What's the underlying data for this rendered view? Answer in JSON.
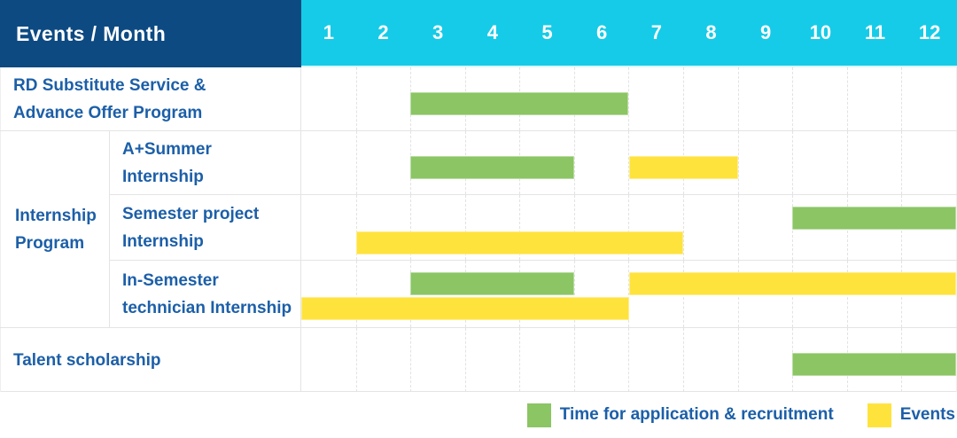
{
  "header": {
    "title": "Events / Month",
    "months": [
      "1",
      "2",
      "3",
      "4",
      "5",
      "6",
      "7",
      "8",
      "9",
      "10",
      "11",
      "12"
    ]
  },
  "colors": {
    "navy": "#0d4a82",
    "cyan": "#16cbe7",
    "green": "#8bc564",
    "yellow": "#ffe33d",
    "label_blue": "#1c5fa8"
  },
  "table": {
    "group_label": "Internship Program",
    "group_label_display": "Internship\nProgram"
  },
  "chart_data": {
    "type": "bar",
    "subtype": "gantt-timeline",
    "unit": "month",
    "x_range": [
      1,
      12
    ],
    "x_ticks": [
      "1",
      "2",
      "3",
      "4",
      "5",
      "6",
      "7",
      "8",
      "9",
      "10",
      "11",
      "12"
    ],
    "corner_title": "Events / Month",
    "legend_position": "bottom-right",
    "grid": true,
    "legend": [
      {
        "key": "application",
        "label": "Time for application & recruitment",
        "color": "#8bc564"
      },
      {
        "key": "events",
        "label": "Events",
        "color": "#ffe33d"
      }
    ],
    "rows": [
      {
        "label": "RD Substitute Service & Advance Offer Program",
        "display": "RD Substitute Service &\nAdvance Offer Program",
        "group": null,
        "bars": [
          {
            "kind": "application",
            "start_month": 3,
            "end_month": 6,
            "line": 0
          }
        ]
      },
      {
        "label": "A+Summer Internship",
        "display": "A+Summer\nInternship",
        "group": "Internship Program",
        "bars": [
          {
            "kind": "application",
            "start_month": 3,
            "end_month": 5,
            "line": 0
          },
          {
            "kind": "events",
            "start_month": 7,
            "end_month": 8,
            "line": 0
          }
        ]
      },
      {
        "label": "Semester project Internship",
        "display": "Semester project\nInternship",
        "group": "Internship Program",
        "bars": [
          {
            "kind": "application",
            "start_month": 10,
            "end_month": 12,
            "line": 0
          },
          {
            "kind": "events",
            "start_month": 2,
            "end_month": 7,
            "line": 1
          }
        ]
      },
      {
        "label": "In-Semester technician Internship",
        "display": "In-Semester\ntechnician Internship",
        "group": "Internship Program",
        "bars": [
          {
            "kind": "application",
            "start_month": 3,
            "end_month": 5,
            "line": 0
          },
          {
            "kind": "events",
            "start_month": 7,
            "end_month": 12,
            "line": 0
          },
          {
            "kind": "events",
            "start_month": 1,
            "end_month": 6,
            "line": 1
          }
        ]
      },
      {
        "label": "Talent scholarship",
        "display": "Talent scholarship",
        "group": null,
        "bars": [
          {
            "kind": "application",
            "start_month": 10,
            "end_month": 12,
            "line": 0
          }
        ]
      }
    ]
  }
}
